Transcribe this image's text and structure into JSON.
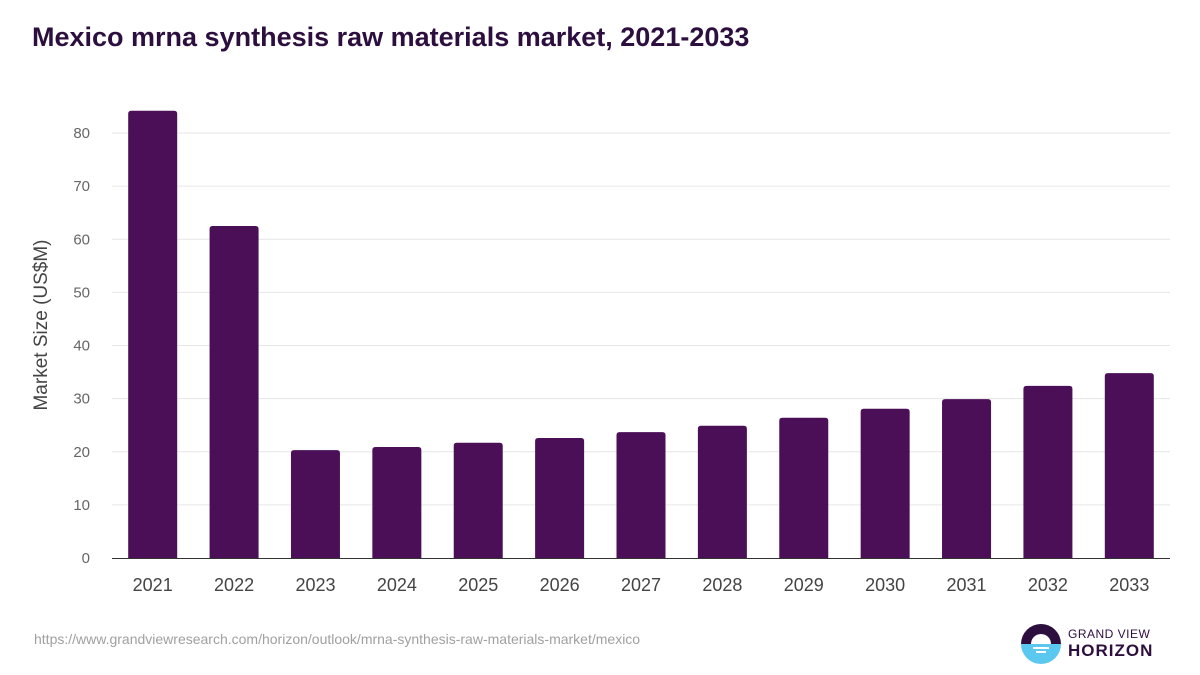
{
  "title": "Mexico mrna synthesis raw materials market, 2021-2033",
  "source": "https://www.grandviewresearch.com/horizon/outlook/mrna-synthesis-raw-materials-market/mexico",
  "logo": {
    "line1": "GRAND VIEW",
    "line2": "HORIZON"
  },
  "colors": {
    "bar": "#4b0f57",
    "title": "#2d0f3f",
    "logo_top": "#2d0f3f",
    "logo_bottom": "#5bc8f0"
  },
  "chart_data": {
    "type": "bar",
    "title": "Mexico mrna synthesis raw materials market, 2021-2033",
    "xlabel": "",
    "ylabel": "Market Size (US$M)",
    "ylim": [
      0,
      80
    ],
    "yticks": [
      0,
      10,
      20,
      30,
      40,
      50,
      60,
      70,
      80
    ],
    "grid": true,
    "categories": [
      "2021",
      "2022",
      "2023",
      "2024",
      "2025",
      "2026",
      "2027",
      "2028",
      "2029",
      "2030",
      "2031",
      "2032",
      "2033"
    ],
    "values": [
      84.2,
      62.5,
      20.3,
      20.9,
      21.7,
      22.6,
      23.7,
      24.9,
      26.4,
      28.1,
      29.9,
      32.4,
      34.8
    ]
  }
}
